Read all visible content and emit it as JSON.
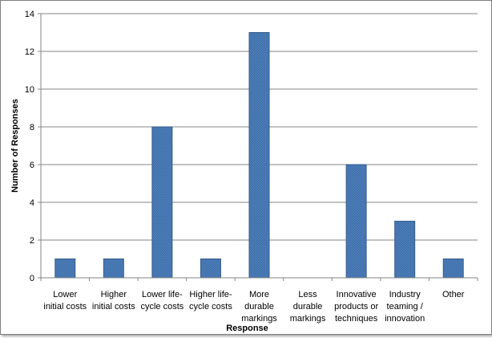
{
  "chart_data": {
    "type": "bar",
    "title": "",
    "xlabel": "Response",
    "ylabel": "Number of Responses",
    "ylim": [
      0,
      14
    ],
    "yticks": [
      0,
      2,
      4,
      6,
      8,
      10,
      12,
      14
    ],
    "grid": true,
    "legend": "none",
    "bar_color": "#4f81bd",
    "categories": [
      [
        "Lower",
        "initial costs"
      ],
      [
        "Higher",
        "initial costs"
      ],
      [
        "Lower life-",
        "cycle costs"
      ],
      [
        "Higher life-",
        "cycle costs"
      ],
      [
        "More",
        "durable",
        "markings"
      ],
      [
        "Less",
        "durable",
        "markings"
      ],
      [
        "Innovative",
        "products or",
        "techniques"
      ],
      [
        "Industry",
        "teaming /",
        "innovation"
      ],
      [
        "Other"
      ]
    ],
    "values": [
      1,
      1,
      8,
      1,
      13,
      0,
      6,
      3,
      1
    ]
  }
}
